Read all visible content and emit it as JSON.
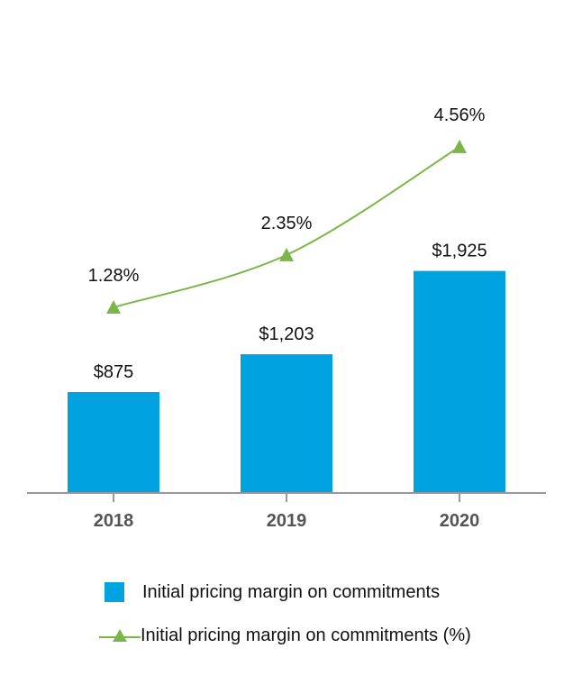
{
  "chart_data": {
    "type": "bar",
    "categories": [
      "2018",
      "2019",
      "2020"
    ],
    "series": [
      {
        "name": "Initial pricing margin on commitments",
        "type": "bar",
        "values": [
          875,
          1203,
          1925
        ],
        "labels": [
          "$875",
          "$1,203",
          "$1,925"
        ],
        "color": "#00a3e0"
      },
      {
        "name": "Initial pricing margin on commitments (%)",
        "type": "line",
        "marker": "triangle",
        "values": [
          1.28,
          2.35,
          4.56
        ],
        "labels": [
          "1.28%",
          "2.35%",
          "4.56%"
        ],
        "color": "#7ab648"
      }
    ],
    "axis_color": "#999999",
    "grid": false,
    "legend_position": "bottom"
  }
}
